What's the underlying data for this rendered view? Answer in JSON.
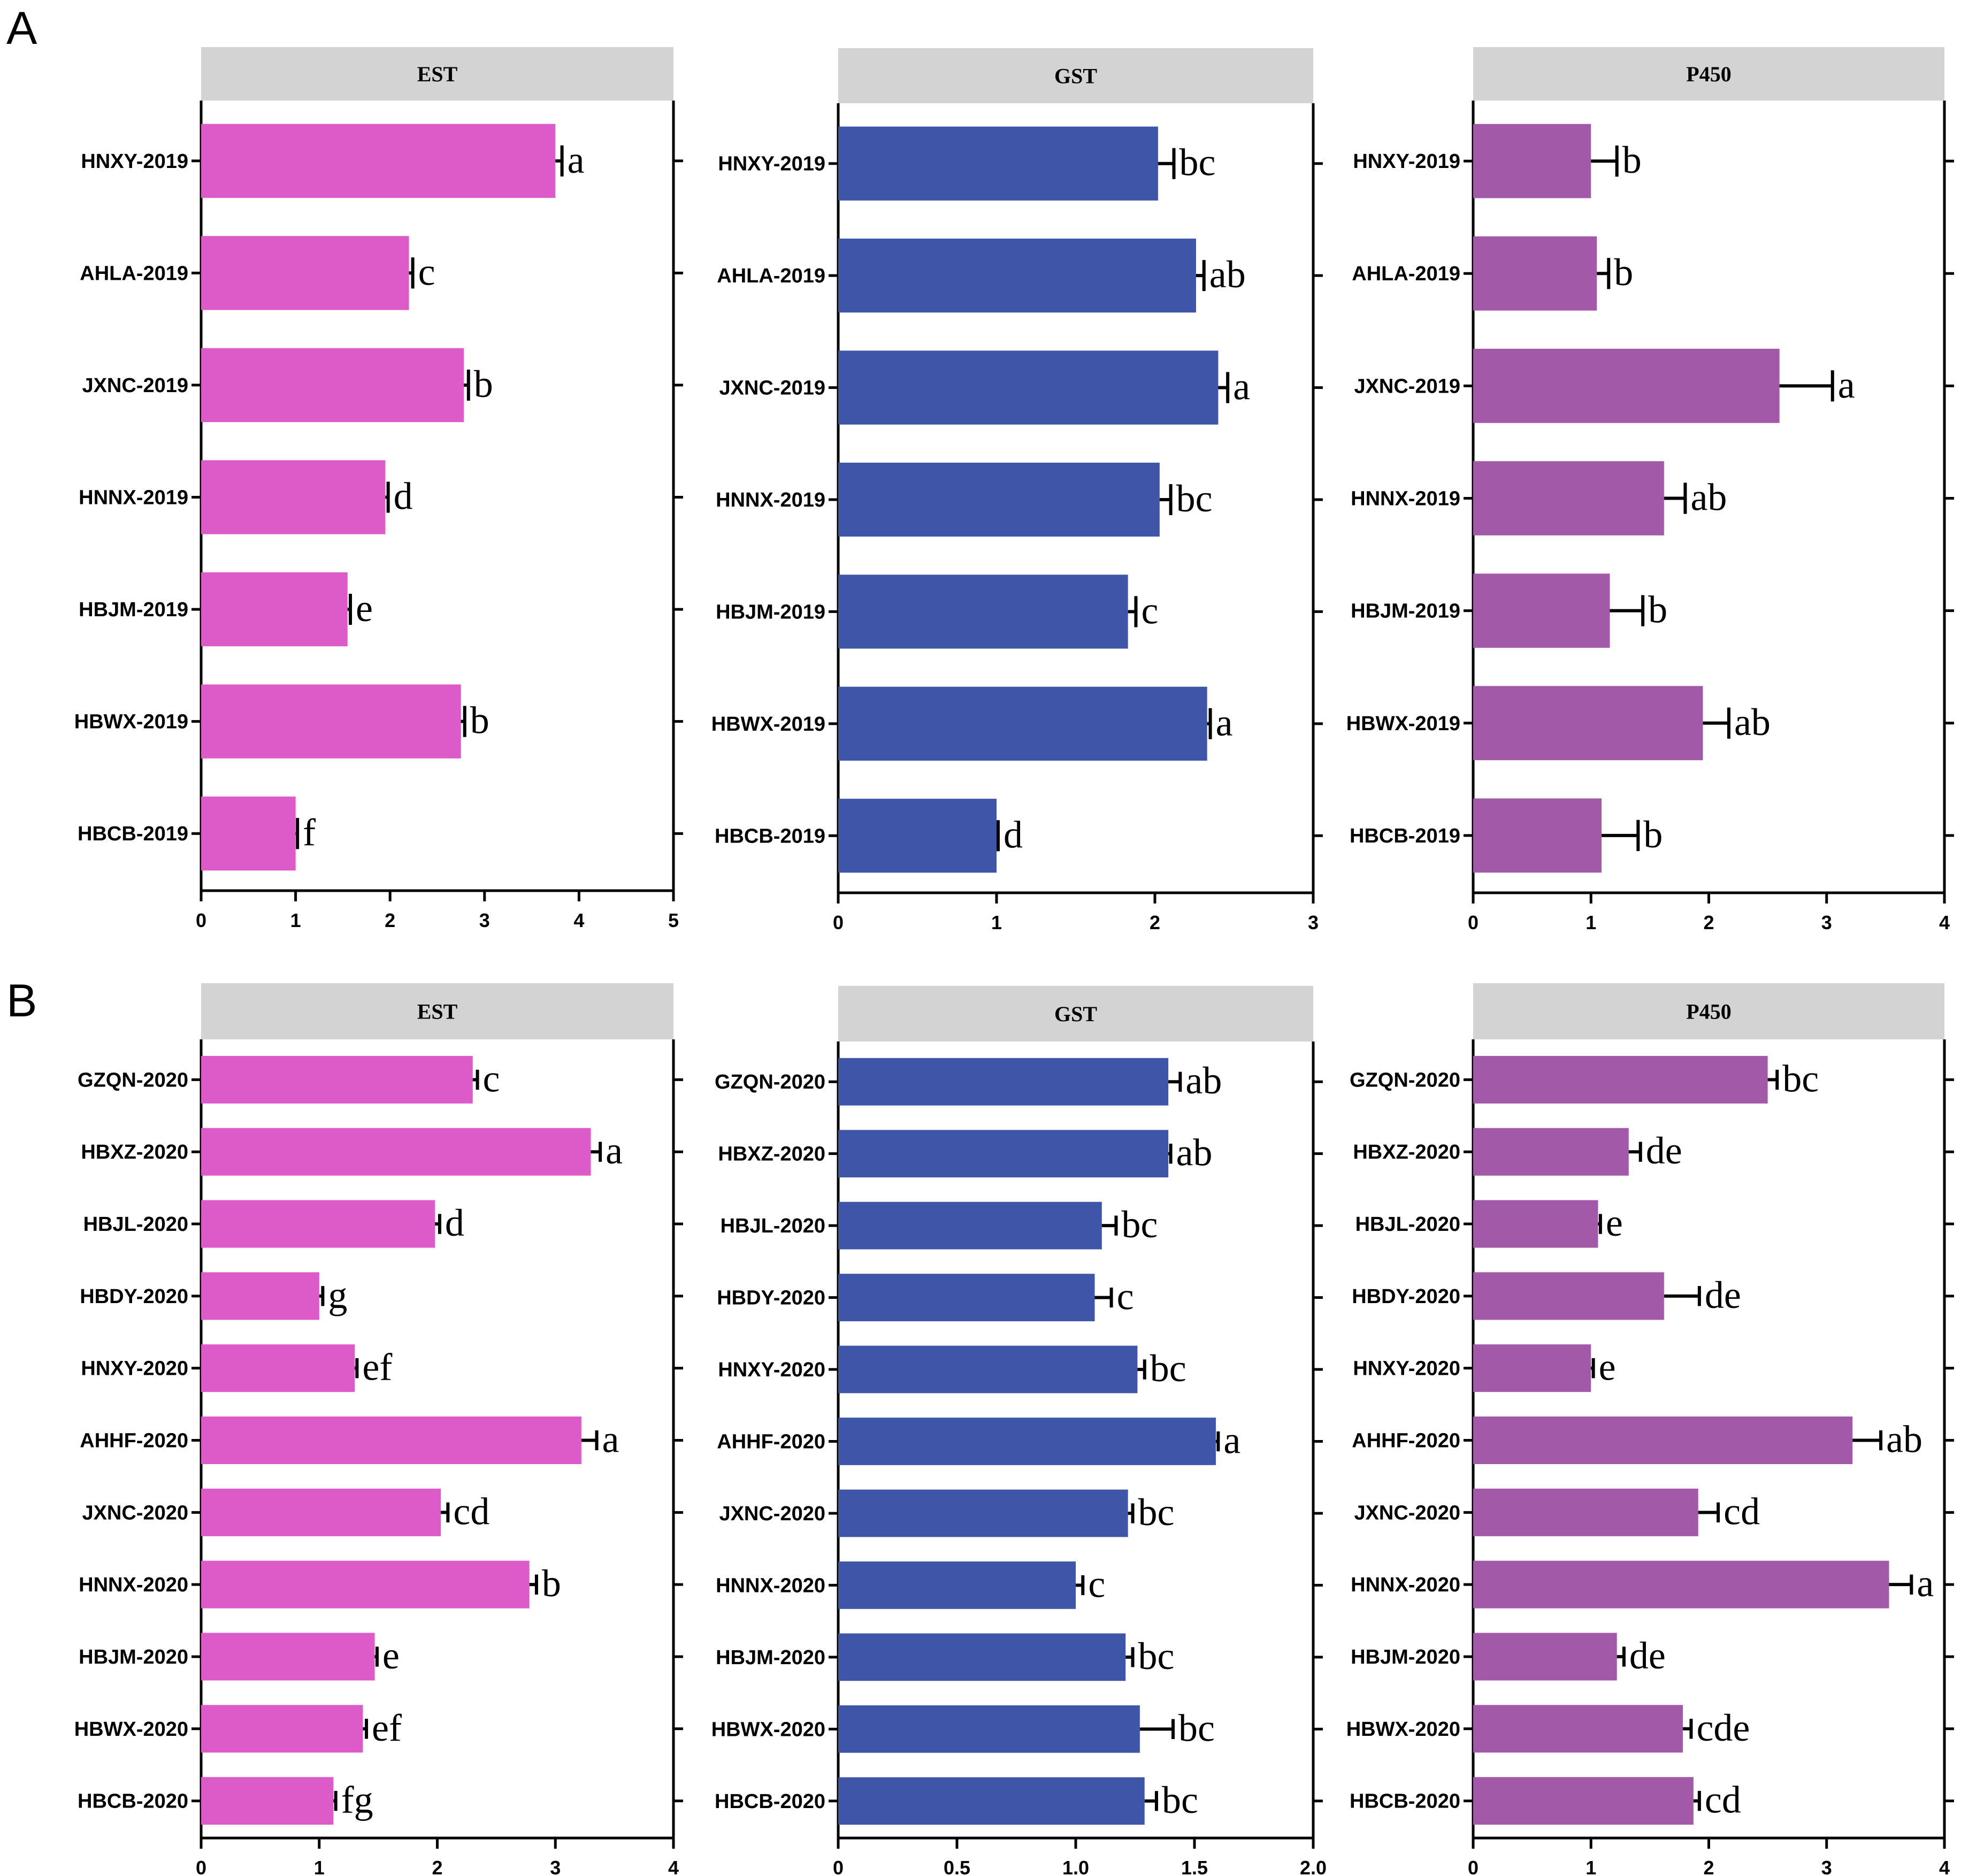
{
  "panels": [
    {
      "label": "A"
    },
    {
      "label": "B"
    }
  ],
  "colors": {
    "EST": "#DC5BC8",
    "GST": "#3F55A8",
    "P450": "#A259A8",
    "header": "#D3D3D3"
  },
  "chart_data": [
    {
      "type": "bar",
      "orientation": "horizontal",
      "panel": "A",
      "title": "EST",
      "categories": [
        "HNXY-2019",
        "AHLA-2019",
        "JXNC-2019",
        "HNNX-2019",
        "HBJM-2019",
        "HBWX-2019",
        "HBCB-2019"
      ],
      "values": [
        3.75,
        2.2,
        2.78,
        1.95,
        1.55,
        2.75,
        1.0
      ],
      "errors": [
        0.07,
        0.04,
        0.05,
        0.03,
        0.03,
        0.04,
        0.02
      ],
      "letters": [
        "a",
        "c",
        "b",
        "d",
        "e",
        "b",
        "f"
      ],
      "xlim": [
        0,
        5
      ],
      "xticks": [
        "0",
        "1",
        "2",
        "3",
        "4",
        "5"
      ],
      "xtick_values": [
        0,
        1,
        2,
        3,
        4,
        5
      ]
    },
    {
      "type": "bar",
      "orientation": "horizontal",
      "panel": "A",
      "title": "GST",
      "categories": [
        "HNXY-2019",
        "AHLA-2019",
        "JXNC-2019",
        "HNNX-2019",
        "HBJM-2019",
        "HBWX-2019",
        "HBCB-2019"
      ],
      "values": [
        2.02,
        2.26,
        2.4,
        2.03,
        1.83,
        2.33,
        1.0
      ],
      "errors": [
        0.1,
        0.05,
        0.06,
        0.07,
        0.05,
        0.02,
        0.01
      ],
      "letters": [
        "bc",
        "ab",
        "a",
        "bc",
        "c",
        "a",
        "d"
      ],
      "xlim": [
        0,
        3
      ],
      "xticks": [
        "0",
        "1",
        "2",
        "3"
      ],
      "xtick_values": [
        0,
        1,
        2,
        3
      ]
    },
    {
      "type": "bar",
      "orientation": "horizontal",
      "panel": "A",
      "title": "P450",
      "categories": [
        "HNXY-2019",
        "AHLA-2019",
        "JXNC-2019",
        "HNNX-2019",
        "HBJM-2019",
        "HBWX-2019",
        "HBCB-2019"
      ],
      "values": [
        1.0,
        1.05,
        2.6,
        1.62,
        1.16,
        1.95,
        1.09
      ],
      "errors": [
        0.22,
        0.1,
        0.45,
        0.18,
        0.28,
        0.22,
        0.31
      ],
      "letters": [
        "b",
        "b",
        "a",
        "ab",
        "b",
        "ab",
        "b"
      ],
      "xlim": [
        0,
        4
      ],
      "xticks": [
        "0",
        "1",
        "2",
        "3",
        "4"
      ],
      "xtick_values": [
        0,
        1,
        2,
        3,
        4
      ]
    },
    {
      "type": "bar",
      "orientation": "horizontal",
      "panel": "B",
      "title": "EST",
      "categories": [
        "GZQN-2020",
        "HBXZ-2020",
        "HBJL-2020",
        "HBDY-2020",
        "HNXY-2020",
        "AHHF-2020",
        "JXNC-2020",
        "HNNX-2020",
        "HBJM-2020",
        "HBWX-2020",
        "HBCB-2020"
      ],
      "values": [
        2.3,
        3.3,
        1.98,
        1.0,
        1.3,
        3.22,
        2.03,
        2.78,
        1.47,
        1.37,
        1.12
      ],
      "errors": [
        0.04,
        0.08,
        0.04,
        0.03,
        0.02,
        0.13,
        0.06,
        0.06,
        0.02,
        0.03,
        0.02
      ],
      "letters": [
        "c",
        "a",
        "d",
        "g",
        "ef",
        "a",
        "cd",
        "b",
        "e",
        "ef",
        "fg"
      ],
      "xlim": [
        0,
        4
      ],
      "xticks": [
        "0",
        "1",
        "2",
        "3",
        "4"
      ],
      "xtick_values": [
        0,
        1,
        2,
        3,
        4
      ]
    },
    {
      "type": "bar",
      "orientation": "horizontal",
      "panel": "B",
      "title": "GST",
      "categories": [
        "GZQN-2020",
        "HBXZ-2020",
        "HBJL-2020",
        "HBDY-2020",
        "HNXY-2020",
        "AHHF-2020",
        "JXNC-2020",
        "HNNX-2020",
        "HBJM-2020",
        "HBWX-2020",
        "HBCB-2020"
      ],
      "values": [
        1.39,
        1.39,
        1.11,
        1.08,
        1.26,
        1.59,
        1.22,
        1.0,
        1.21,
        1.27,
        1.29
      ],
      "errors": [
        0.05,
        0.01,
        0.06,
        0.07,
        0.03,
        0.01,
        0.02,
        0.03,
        0.03,
        0.14,
        0.05
      ],
      "letters": [
        "ab",
        "ab",
        "bc",
        "c",
        "bc",
        "a",
        "bc",
        "c",
        "bc",
        "bc",
        "bc"
      ],
      "xlim": [
        0,
        2.0
      ],
      "xticks": [
        "0",
        "0.5",
        "1.0",
        "1.5",
        "2.0"
      ],
      "xtick_values": [
        0,
        0.5,
        1.0,
        1.5,
        2.0
      ]
    },
    {
      "type": "bar",
      "orientation": "horizontal",
      "panel": "B",
      "title": "P450",
      "categories": [
        "GZQN-2020",
        "HBXZ-2020",
        "HBJL-2020",
        "HBDY-2020",
        "HNXY-2020",
        "AHHF-2020",
        "JXNC-2020",
        "HNNX-2020",
        "HBJM-2020",
        "HBWX-2020",
        "HBCB-2020"
      ],
      "values": [
        2.5,
        1.32,
        1.06,
        1.62,
        1.0,
        3.22,
        1.91,
        3.53,
        1.22,
        1.78,
        1.87
      ],
      "errors": [
        0.08,
        0.1,
        0.02,
        0.3,
        0.02,
        0.24,
        0.17,
        0.19,
        0.06,
        0.07,
        0.05
      ],
      "letters": [
        "bc",
        "de",
        "e",
        "de",
        "e",
        "ab",
        "cd",
        "a",
        "de",
        "cde",
        "cd"
      ],
      "xlim": [
        0,
        4
      ],
      "xticks": [
        "0",
        "1",
        "2",
        "3",
        "4"
      ],
      "xtick_values": [
        0,
        1,
        2,
        3,
        4
      ]
    }
  ]
}
